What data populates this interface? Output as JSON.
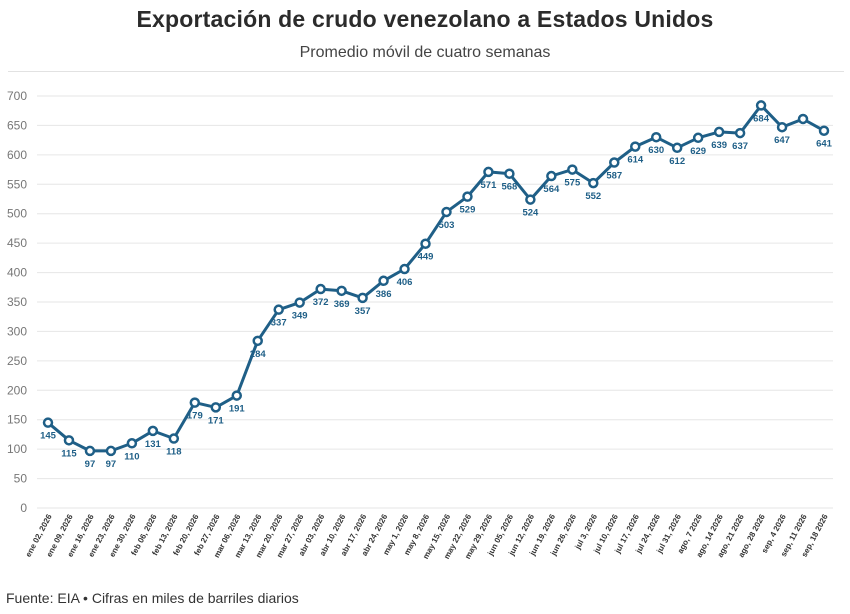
{
  "header": {
    "title": "Exportación de crudo venezolano a Estados Unidos",
    "subtitle": "Promedio móvil de cuatro semanas"
  },
  "footer": {
    "source": "Fuente: EIA • Cifras en miles de barriles diarios"
  },
  "colors": {
    "line": "#1f5f87",
    "grid": "#e6e6e6",
    "marker_fill": "#ffffff"
  },
  "chart_data": {
    "type": "line",
    "title": "Exportación de crudo venezolano a Estados Unidos",
    "subtitle": "Promedio móvil de cuatro semanas",
    "xlabel": "",
    "ylabel": "",
    "ylim": [
      0,
      700
    ],
    "yticks": [
      0,
      50,
      100,
      150,
      200,
      250,
      300,
      350,
      400,
      450,
      500,
      550,
      600,
      650,
      700
    ],
    "grid": true,
    "categories": [
      "ene 02, 2026",
      "ene 09, 2026",
      "ene 16, 2026",
      "ene 23, 2026",
      "ene 30, 2026",
      "feb 06, 2026",
      "feb 13, 2026",
      "feb 20, 2026",
      "feb 27, 2026",
      "mar 06, 2026",
      "mar 13, 2026",
      "mar 20, 2026",
      "mar 27, 2026",
      "abr 03, 2026",
      "abr 10, 2026",
      "abr 17, 2026",
      "abr 24, 2026",
      "may 1, 2026",
      "may 8, 2026",
      "may 15, 2026",
      "may 22, 2026",
      "may 29, 2026",
      "jun 05, 2026",
      "jun 12, 2026",
      "jun 19, 2026",
      "jun 26, 2026",
      "jul 3, 2026",
      "jul 10, 2026",
      "jul 17, 2026",
      "jul 24, 2026",
      "jul 31, 2026",
      "ago, 7 2026",
      "ago, 14 2026",
      "ago, 21 2026",
      "ago, 28 2026",
      "sep, 4 2026",
      "sep, 11 2026",
      "sep, 18 2026"
    ],
    "series": [
      {
        "values": [
          145,
          115,
          97,
          97,
          110,
          131,
          118,
          179,
          171,
          191,
          284,
          337,
          349,
          372,
          369,
          357,
          386,
          406,
          449,
          503,
          529,
          571,
          568,
          524,
          564,
          575,
          552,
          587,
          614,
          630,
          612,
          629,
          639,
          637,
          684,
          647,
          661,
          641
        ],
        "labels": [
          "145",
          "115",
          "97",
          "97",
          "110",
          "131",
          "118",
          "179",
          "171",
          "191",
          "284",
          "337",
          "349",
          "372",
          "369",
          "357",
          "386",
          "406",
          "449",
          "503",
          "529",
          "571",
          "568",
          "524",
          "564",
          "575",
          "552",
          "587",
          "614",
          "630",
          "612",
          "629",
          "639",
          "637",
          "684",
          "647",
          "",
          "641"
        ]
      }
    ]
  }
}
